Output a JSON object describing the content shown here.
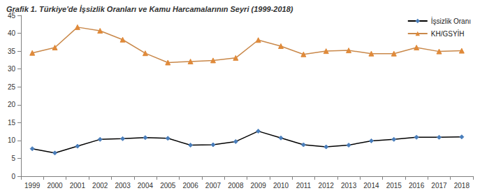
{
  "chart_data": {
    "type": "line",
    "title": "Grafik 1. Türkiye'de İşsizlik Oranları ve Kamu Harcamalarının Seyri (1999-2018)",
    "categories": [
      "1999",
      "2000",
      "2001",
      "2002",
      "2003",
      "2004",
      "2005",
      "2006",
      "2007",
      "2008",
      "2009",
      "2010",
      "2011",
      "2012",
      "2013",
      "2014",
      "2015",
      "2016",
      "2017",
      "2018"
    ],
    "series": [
      {
        "name": "İşsizlik Oranı",
        "color": "#000000",
        "marker": "diamond",
        "line_style": "solid",
        "values": [
          7.7,
          6.5,
          8.4,
          10.3,
          10.5,
          10.8,
          10.6,
          8.7,
          8.8,
          9.7,
          12.6,
          10.7,
          8.8,
          8.2,
          8.7,
          9.9,
          10.3,
          10.9,
          10.9,
          11.0
        ]
      },
      {
        "name": "KH/GSYİH",
        "color": "#c9884a",
        "marker": "triangle",
        "line_style": "solid",
        "values": [
          34.5,
          36.0,
          41.7,
          40.7,
          38.2,
          34.4,
          31.8,
          32.1,
          32.4,
          33.1,
          38.1,
          36.4,
          34.1,
          35.0,
          35.2,
          34.3,
          34.3,
          36.0,
          34.9,
          35.1
        ]
      }
    ],
    "ylim": [
      0,
      45
    ],
    "yticks": [
      0,
      5,
      10,
      15,
      20,
      25,
      30,
      35,
      40,
      45
    ],
    "grid": false,
    "legend": "top-right"
  }
}
